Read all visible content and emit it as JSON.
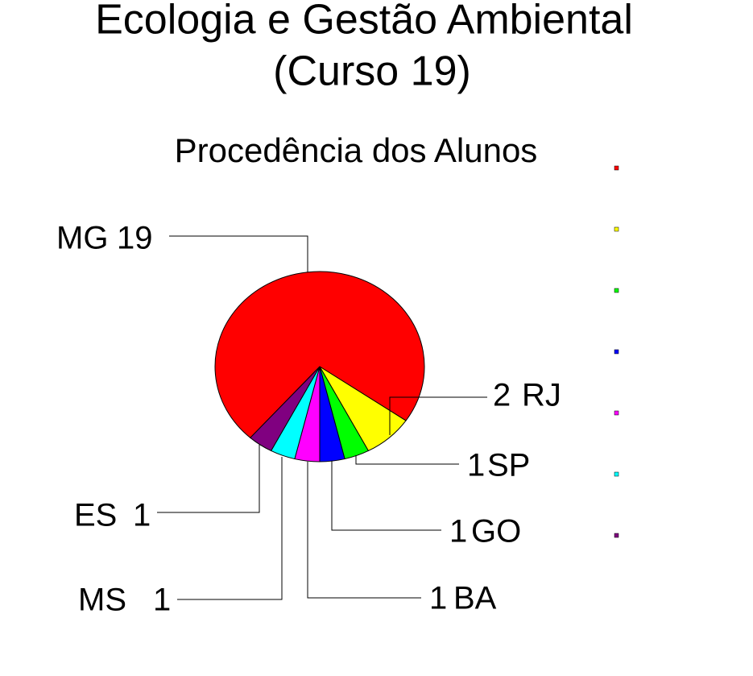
{
  "chart_data": {
    "type": "pie",
    "title": [
      "Ecologia e Gestão Ambiental",
      "(Curso 19)"
    ],
    "subtitle": "Procedência dos Alunos",
    "categories": [
      "MG",
      "RJ",
      "SP",
      "GO",
      "BA",
      "MS",
      "ES"
    ],
    "values": [
      19,
      2,
      1,
      1,
      1,
      1,
      1
    ],
    "colors": [
      "#ff0000",
      "#ffff00",
      "#00ff00",
      "#0000ff",
      "#ff00ff",
      "#00ffff",
      "#800080"
    ]
  }
}
